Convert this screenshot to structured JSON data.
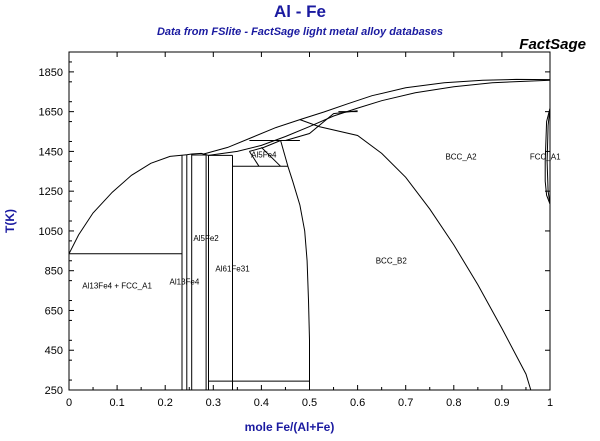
{
  "header": {
    "title": "Al - Fe",
    "subtitle": "Data from FSlite - FactSage light metal alloy databases",
    "brand": "FactSage"
  },
  "axes": {
    "x_label": "mole Fe/(Al+Fe)",
    "y_label": "T(K)",
    "x_range": [
      0,
      1
    ],
    "y_range": [
      250,
      1950
    ],
    "x_ticks": [
      "0",
      "0.1",
      "0.2",
      "0.3",
      "0.4",
      "0.5",
      "0.6",
      "0.7",
      "0.8",
      "0.9",
      "1"
    ],
    "y_ticks": [
      "250",
      "450",
      "650",
      "850",
      "1050",
      "1250",
      "1450",
      "1650",
      "1850"
    ],
    "axis_color": "#000000",
    "label_color": "#1a1aa0"
  },
  "phase_labels": [
    {
      "text": "Al13Fe4 + FCC_A1",
      "x": 0.1,
      "y": 760
    },
    {
      "text": "Al13Fe4",
      "x": 0.24,
      "y": 780
    },
    {
      "text": "Al5Fe2",
      "x": 0.285,
      "y": 1000
    },
    {
      "text": "Al61Fe31",
      "x": 0.34,
      "y": 845
    },
    {
      "text": "Al5Fe4",
      "x": 0.405,
      "y": 1420
    },
    {
      "text": "BCC_A2",
      "x": 0.815,
      "y": 1410
    },
    {
      "text": "BCC_B2",
      "x": 0.67,
      "y": 885
    },
    {
      "text": "FCC_A1",
      "x": 0.99,
      "y": 1410
    }
  ],
  "boundaries": [
    {
      "name": "liquidus-al-side",
      "points": [
        [
          0,
          935
        ],
        [
          0.02,
          1030
        ],
        [
          0.05,
          1140
        ],
        [
          0.09,
          1245
        ],
        [
          0.13,
          1330
        ],
        [
          0.17,
          1390
        ],
        [
          0.21,
          1425
        ],
        [
          0.245,
          1433
        ]
      ]
    },
    {
      "name": "liquidus-mid",
      "points": [
        [
          0.28,
          1437
        ],
        [
          0.33,
          1470
        ],
        [
          0.38,
          1520
        ],
        [
          0.43,
          1570
        ],
        [
          0.48,
          1610
        ],
        [
          0.53,
          1648
        ],
        [
          0.58,
          1690
        ],
        [
          0.63,
          1730
        ],
        [
          0.7,
          1770
        ],
        [
          0.78,
          1795
        ],
        [
          0.86,
          1808
        ],
        [
          0.93,
          1812
        ],
        [
          1,
          1811
        ]
      ]
    },
    {
      "name": "solidus-mid",
      "points": [
        [
          0.29,
          1430
        ],
        [
          0.35,
          1450
        ],
        [
          0.4,
          1480
        ],
        [
          0.45,
          1525
        ],
        [
          0.5,
          1575
        ],
        [
          0.55,
          1628
        ],
        [
          0.6,
          1668
        ],
        [
          0.65,
          1705
        ],
        [
          0.72,
          1745
        ],
        [
          0.8,
          1775
        ],
        [
          0.88,
          1795
        ],
        [
          0.95,
          1803
        ],
        [
          1,
          1808
        ]
      ]
    },
    {
      "name": "eutectic-al",
      "points": [
        [
          0,
          935
        ],
        [
          0.235,
          935
        ]
      ]
    },
    {
      "name": "al13fe4-left",
      "points": [
        [
          0.235,
          250
        ],
        [
          0.235,
          1430
        ]
      ]
    },
    {
      "name": "al13fe4-right",
      "points": [
        [
          0.245,
          250
        ],
        [
          0.245,
          1433
        ]
      ]
    },
    {
      "name": "al5fe2-left",
      "points": [
        [
          0.255,
          250
        ],
        [
          0.255,
          1437
        ]
      ]
    },
    {
      "name": "al5fe2-top",
      "points": [
        [
          0.245,
          1433
        ],
        [
          0.255,
          1437
        ],
        [
          0.275,
          1440
        ],
        [
          0.29,
          1430
        ]
      ]
    },
    {
      "name": "al5fe2-right",
      "points": [
        [
          0.285,
          250
        ],
        [
          0.285,
          1435
        ]
      ]
    },
    {
      "name": "al5fe2-platform",
      "points": [
        [
          0.255,
          1432
        ],
        [
          0.285,
          1432
        ]
      ]
    },
    {
      "name": "al61fe31-left",
      "points": [
        [
          0.29,
          250
        ],
        [
          0.29,
          1430
        ]
      ]
    },
    {
      "name": "al61fe31-right",
      "points": [
        [
          0.34,
          250
        ],
        [
          0.34,
          1430
        ]
      ]
    },
    {
      "name": "al61fe31-top",
      "points": [
        [
          0.29,
          1430
        ],
        [
          0.34,
          1430
        ]
      ]
    },
    {
      "name": "b2-line-low",
      "points": [
        [
          0.29,
          295
        ],
        [
          0.5,
          295
        ]
      ]
    },
    {
      "name": "b2-line-mid",
      "points": [
        [
          0.34,
          1375
        ],
        [
          0.455,
          1375
        ]
      ]
    },
    {
      "name": "b2-left-sub",
      "points": [
        [
          0.455,
          1375
        ],
        [
          0.465,
          1300
        ],
        [
          0.48,
          1180
        ],
        [
          0.49,
          1050
        ],
        [
          0.495,
          900
        ],
        [
          0.498,
          700
        ],
        [
          0.5,
          500
        ],
        [
          0.5,
          250
        ]
      ]
    },
    {
      "name": "al5fe4-left",
      "points": [
        [
          0.375,
          1450
        ],
        [
          0.395,
          1375
        ]
      ]
    },
    {
      "name": "al5fe4-right",
      "points": [
        [
          0.44,
          1505
        ],
        [
          0.455,
          1375
        ]
      ]
    },
    {
      "name": "al5fe4-top",
      "points": [
        [
          0.375,
          1450
        ],
        [
          0.405,
          1470
        ],
        [
          0.44,
          1505
        ]
      ]
    },
    {
      "name": "al5fe4-inner",
      "points": [
        [
          0.4,
          1470
        ],
        [
          0.44,
          1375
        ]
      ]
    },
    {
      "name": "al5fe4-platform",
      "points": [
        [
          0.375,
          1505
        ],
        [
          0.48,
          1505
        ]
      ]
    },
    {
      "name": "b2-a2-transition",
      "points": [
        [
          0.48,
          1610
        ],
        [
          0.52,
          1575
        ],
        [
          0.6,
          1530
        ],
        [
          0.65,
          1440
        ],
        [
          0.7,
          1320
        ],
        [
          0.75,
          1160
        ],
        [
          0.8,
          980
        ],
        [
          0.85,
          780
        ],
        [
          0.9,
          560
        ],
        [
          0.95,
          330
        ],
        [
          0.96,
          250
        ]
      ]
    },
    {
      "name": "b2-a2-upper",
      "points": [
        [
          0.45,
          1505
        ],
        [
          0.5,
          1540
        ],
        [
          0.55,
          1640
        ],
        [
          0.6,
          1655
        ]
      ]
    },
    {
      "name": "fcc-loop-left",
      "points": [
        [
          1,
          1185
        ],
        [
          0.993,
          1230
        ],
        [
          0.99,
          1300
        ],
        [
          0.99,
          1400
        ],
        [
          0.993,
          1600
        ],
        [
          1,
          1667
        ]
      ]
    },
    {
      "name": "fcc-loop-right",
      "points": [
        [
          1,
          1185
        ],
        [
          0.996,
          1250
        ],
        [
          0.994,
          1400
        ],
        [
          0.996,
          1580
        ],
        [
          1,
          1667
        ]
      ]
    },
    {
      "name": "platform-560",
      "points": [
        [
          0.56,
          1650
        ],
        [
          0.6,
          1650
        ]
      ]
    }
  ]
}
